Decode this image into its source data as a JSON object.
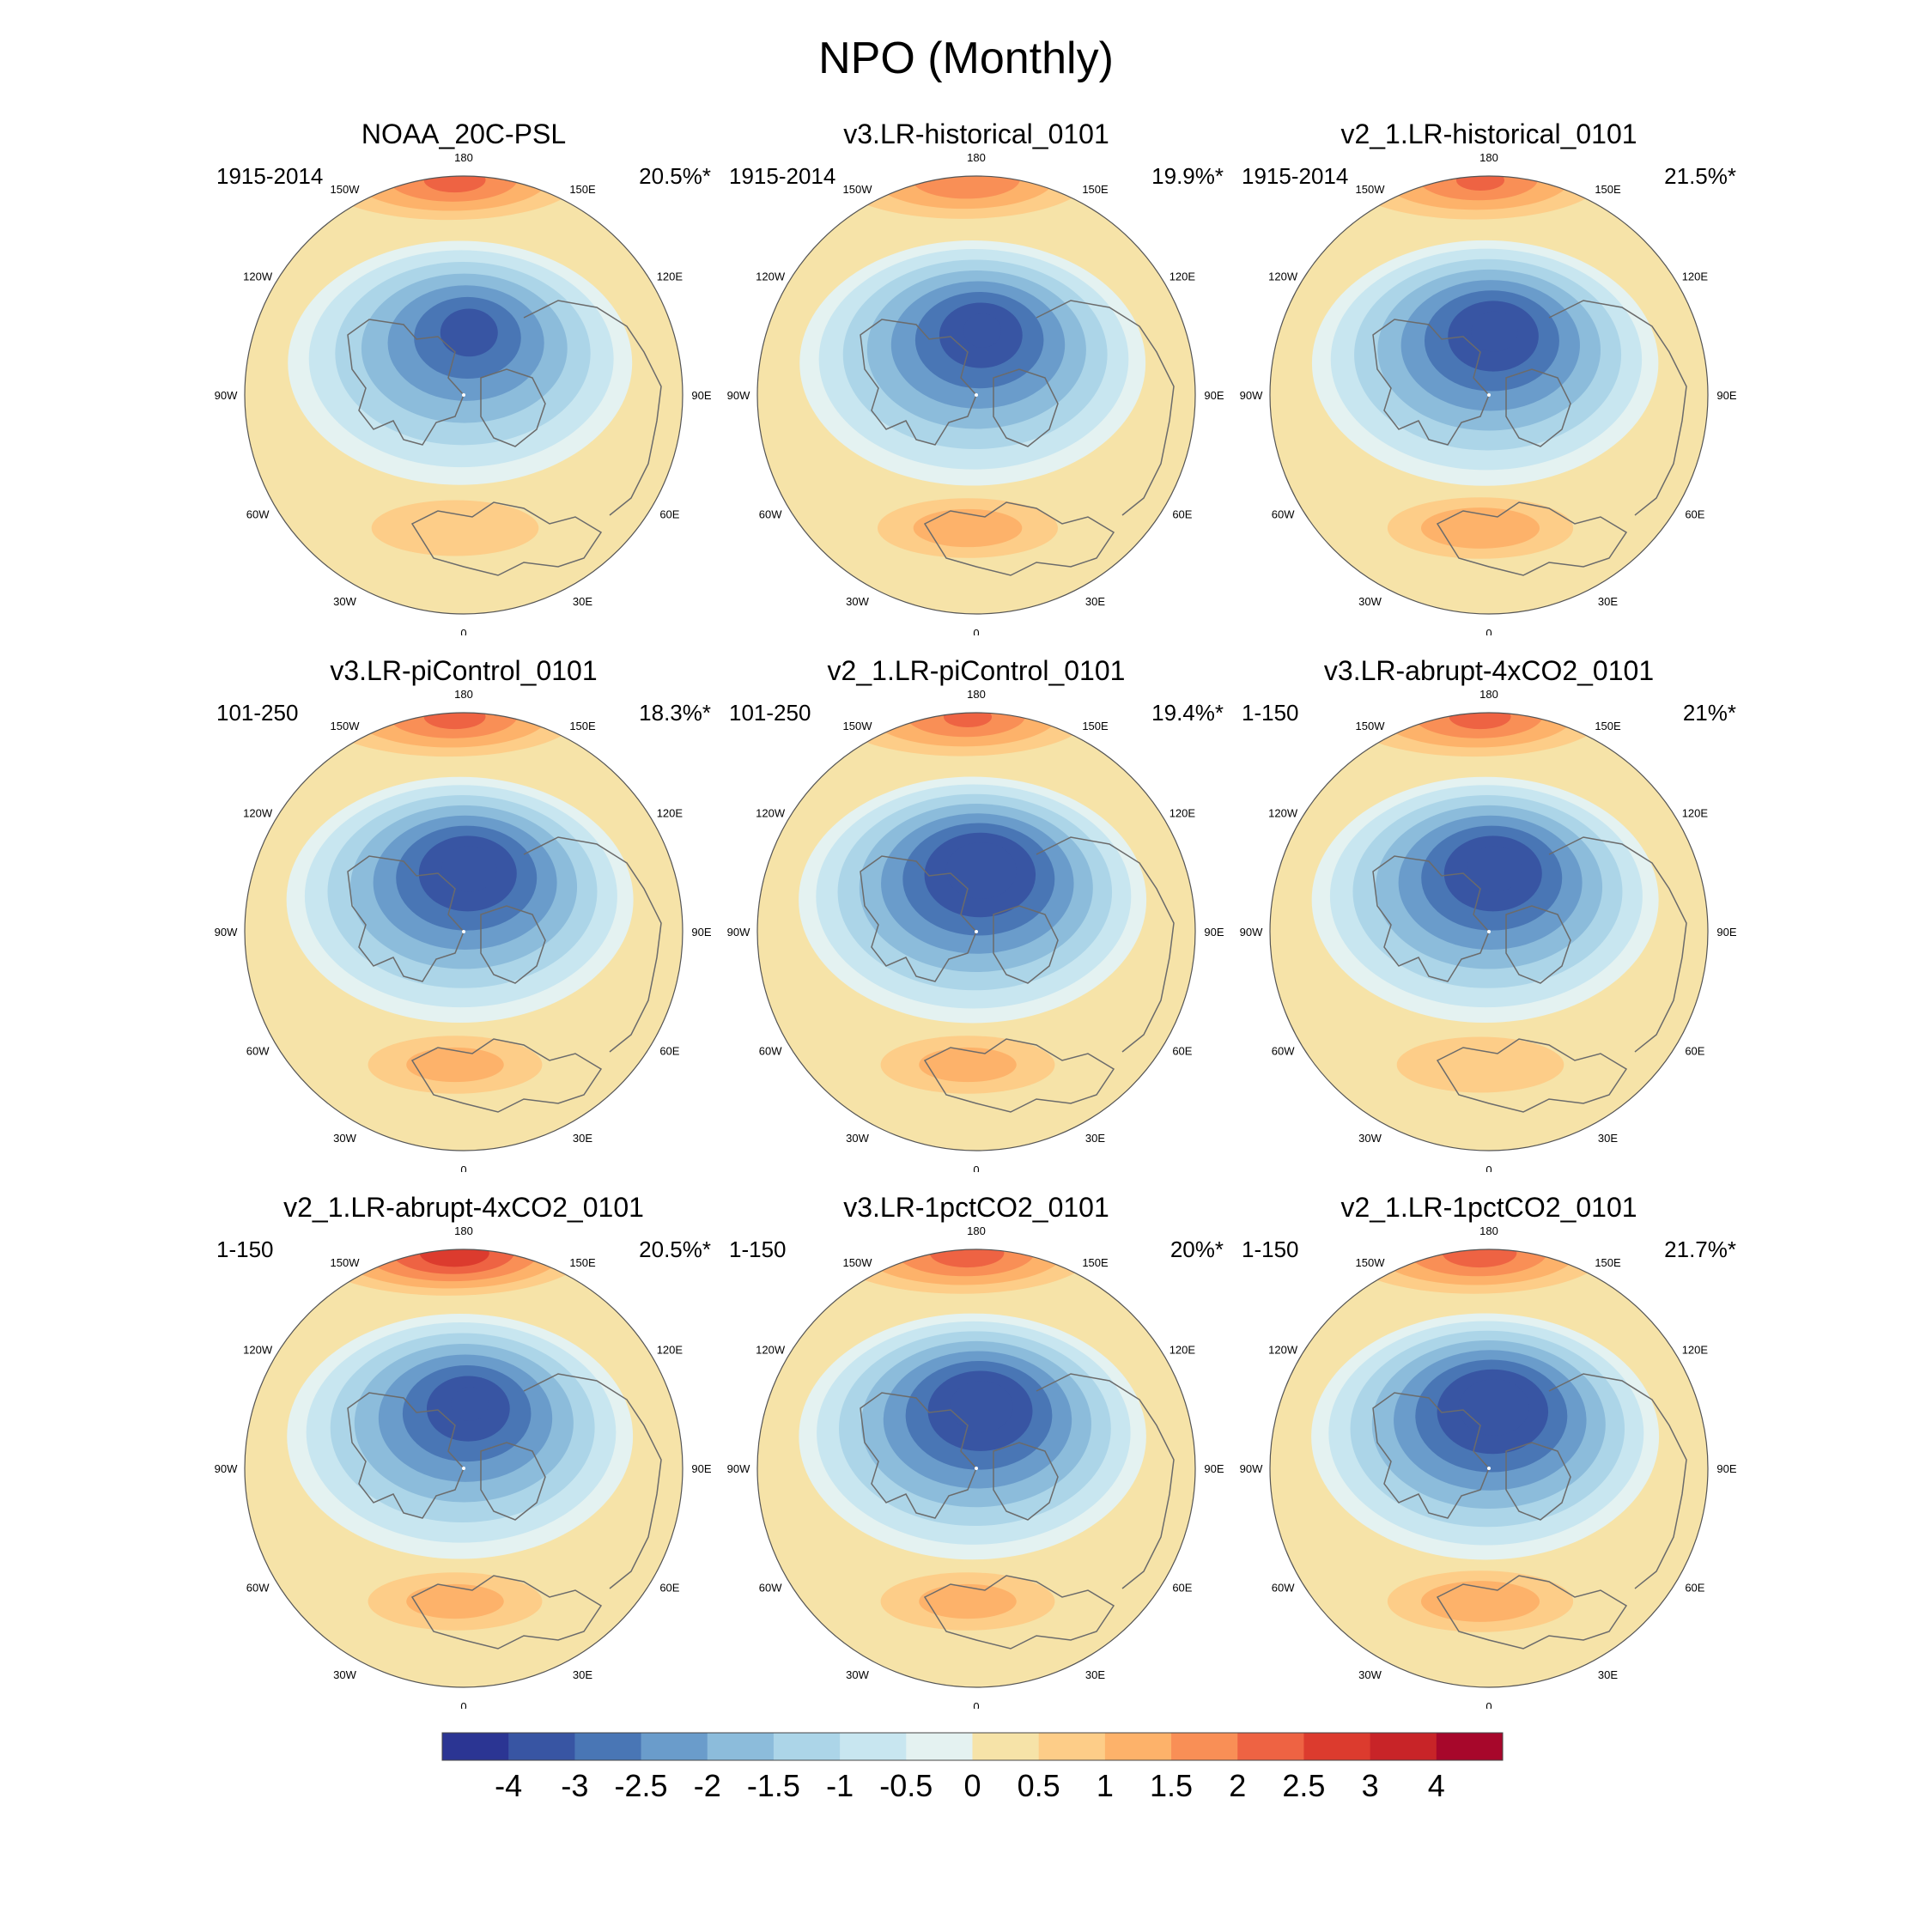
{
  "title": "NPO (Monthly)",
  "longitude_labels": [
    "180",
    "150E",
    "120E",
    "90E",
    "60E",
    "30E",
    "0",
    "30W",
    "60W",
    "90W",
    "120W",
    "150W"
  ],
  "panels": [
    {
      "title": "NOAA_20C-PSL",
      "period": "1915-2014",
      "variance": "20.5%*",
      "high_peak": 2.2,
      "low_peak": -3.3,
      "atlantic_high": 1.0
    },
    {
      "title": "v3.LR-historical_0101",
      "period": "1915-2014",
      "variance": "19.9%*",
      "high_peak": 2.0,
      "low_peak": -3.6,
      "atlantic_high": 1.2
    },
    {
      "title": "v2_1.LR-historical_0101",
      "period": "1915-2014",
      "variance": "21.5%*",
      "high_peak": 2.1,
      "low_peak": -3.7,
      "atlantic_high": 1.3
    },
    {
      "title": "v3.LR-piControl_0101",
      "period": "101-250",
      "variance": "18.3%*",
      "high_peak": 2.2,
      "low_peak": -3.8,
      "atlantic_high": 1.1
    },
    {
      "title": "v2_1.LR-piControl_0101",
      "period": "101-250",
      "variance": "19.4%*",
      "high_peak": 2.1,
      "low_peak": -4.0,
      "atlantic_high": 1.1
    },
    {
      "title": "v3.LR-abrupt-4xCO2_0101",
      "period": "1-150",
      "variance": "21%*",
      "high_peak": 2.2,
      "low_peak": -3.8,
      "atlantic_high": 1.0
    },
    {
      "title": "v2_1.LR-abrupt-4xCO2_0101",
      "period": "1-150",
      "variance": "20.5%*",
      "high_peak": 2.8,
      "low_peak": -3.6,
      "atlantic_high": 1.1
    },
    {
      "title": "v3.LR-1pctCO2_0101",
      "period": "1-150",
      "variance": "20%*",
      "high_peak": 2.3,
      "low_peak": -3.9,
      "atlantic_high": 1.1
    },
    {
      "title": "v2_1.LR-1pctCO2_0101",
      "period": "1-150",
      "variance": "21.7%*",
      "high_peak": 2.3,
      "low_peak": -4.0,
      "atlantic_high": 1.3
    }
  ],
  "colorbar": {
    "ticks": [
      "-4",
      "-3",
      "-2.5",
      "-2",
      "-1.5",
      "-1",
      "-0.5",
      "0",
      "0.5",
      "1",
      "1.5",
      "2",
      "2.5",
      "3",
      "4"
    ],
    "colors": [
      "#2b3593",
      "#3855a3",
      "#4976b5",
      "#6a9ccb",
      "#8cbcdb",
      "#acd5e8",
      "#c8e6f0",
      "#e4f2f1",
      "#f6e3a8",
      "#fdcd88",
      "#fdb26a",
      "#f98f56",
      "#ee6343",
      "#dc3b2e",
      "#c82428",
      "#a7072b"
    ]
  }
}
